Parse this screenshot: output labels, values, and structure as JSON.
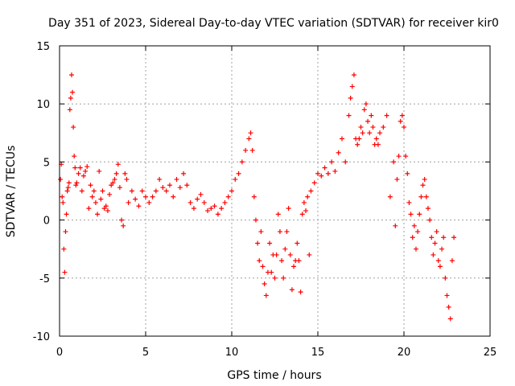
{
  "chart_data": {
    "type": "scatter",
    "marker": "+",
    "title": "Day 351 of 2023, Sidereal Day-to-day VTEC variation (SDTVAR) for receiver kir0",
    "xlabel": "GPS time / hours",
    "ylabel": "SDTVAR / TECUs",
    "xlim": [
      0,
      25
    ],
    "ylim": [
      -10,
      15
    ],
    "xticks": [
      0,
      5,
      10,
      15,
      20,
      25
    ],
    "yticks": [
      -10,
      -5,
      0,
      5,
      10,
      15
    ],
    "xtick_labels": [
      "0",
      "5",
      "10",
      "15",
      "20",
      "25"
    ],
    "ytick_labels": [
      "-10",
      "-5",
      "0",
      "5",
      "10",
      "15"
    ],
    "grid": true,
    "color": "#ff0000",
    "series": [
      {
        "name": "SDTVAR",
        "x": [
          0.05,
          0.1,
          0.15,
          0.2,
          0.25,
          0.3,
          0.35,
          0.4,
          0.45,
          0.5,
          0.55,
          0.6,
          0.65,
          0.7,
          0.75,
          0.8,
          0.85,
          0.9,
          0.95,
          1.0,
          1.1,
          1.2,
          1.3,
          1.4,
          1.5,
          1.6,
          1.7,
          1.8,
          1.9,
          2.0,
          2.1,
          2.2,
          2.3,
          2.4,
          2.5,
          2.6,
          2.7,
          2.8,
          2.9,
          3.0,
          3.1,
          3.2,
          3.3,
          3.4,
          3.5,
          3.6,
          3.7,
          3.8,
          3.9,
          4.0,
          4.2,
          4.4,
          4.6,
          4.8,
          5.0,
          5.2,
          5.4,
          5.6,
          5.8,
          6.0,
          6.2,
          6.4,
          6.6,
          6.8,
          7.0,
          7.2,
          7.4,
          7.6,
          7.8,
          8.0,
          8.2,
          8.4,
          8.6,
          8.8,
          9.0,
          9.2,
          9.4,
          9.6,
          9.8,
          10.0,
          10.2,
          10.4,
          10.6,
          10.8,
          11.0,
          11.1,
          11.2,
          11.3,
          11.4,
          11.5,
          11.6,
          11.7,
          11.8,
          11.9,
          12.0,
          12.1,
          12.2,
          12.3,
          12.4,
          12.5,
          12.6,
          12.7,
          12.8,
          12.9,
          13.0,
          13.1,
          13.2,
          13.3,
          13.4,
          13.5,
          13.6,
          13.7,
          13.8,
          13.9,
          14.0,
          14.1,
          14.2,
          14.3,
          14.4,
          14.5,
          14.6,
          14.8,
          15.0,
          15.2,
          15.4,
          15.6,
          15.8,
          16.0,
          16.2,
          16.4,
          16.6,
          16.8,
          16.9,
          17.0,
          17.1,
          17.2,
          17.3,
          17.4,
          17.5,
          17.6,
          17.7,
          17.8,
          17.9,
          18.0,
          18.1,
          18.2,
          18.3,
          18.4,
          18.5,
          18.6,
          18.8,
          19.0,
          19.2,
          19.4,
          19.5,
          19.6,
          19.7,
          19.8,
          19.9,
          20.0,
          20.1,
          20.2,
          20.3,
          20.4,
          20.5,
          20.6,
          20.7,
          20.8,
          20.9,
          21.0,
          21.1,
          21.2,
          21.3,
          21.4,
          21.5,
          21.6,
          21.7,
          21.8,
          21.9,
          22.0,
          22.1,
          22.2,
          22.3,
          22.4,
          22.5,
          22.6,
          22.7,
          22.8,
          22.9
        ],
        "y": [
          3.5,
          4.8,
          2.0,
          1.5,
          -2.5,
          -4.5,
          -1.0,
          0.5,
          2.5,
          2.8,
          3.2,
          9.5,
          10.5,
          12.5,
          11.0,
          8.0,
          5.5,
          4.5,
          3.0,
          3.2,
          4.0,
          4.5,
          2.5,
          3.8,
          4.2,
          4.6,
          1.0,
          3.0,
          2.0,
          2.5,
          1.5,
          0.5,
          4.2,
          1.8,
          2.5,
          1.0,
          1.2,
          0.8,
          2.2,
          3.0,
          3.2,
          3.5,
          4.0,
          4.8,
          2.8,
          0.0,
          -0.5,
          4.0,
          3.5,
          1.5,
          2.5,
          1.8,
          1.2,
          2.5,
          2.0,
          1.5,
          2.0,
          2.5,
          3.5,
          2.8,
          2.5,
          3.0,
          2.0,
          3.5,
          2.8,
          4.0,
          3.0,
          1.5,
          1.0,
          1.8,
          2.2,
          1.5,
          0.8,
          1.0,
          1.2,
          0.5,
          1.0,
          1.5,
          2.0,
          2.5,
          3.5,
          4.0,
          5.0,
          6.0,
          7.0,
          7.5,
          6.0,
          2.0,
          0.0,
          -2.0,
          -3.5,
          -1.0,
          -4.0,
          -5.5,
          -6.5,
          -4.5,
          -2.0,
          -4.5,
          -3.0,
          -5.0,
          -3.0,
          0.5,
          -1.0,
          -3.5,
          -5.0,
          -2.5,
          -1.0,
          1.0,
          -3.0,
          -6.0,
          -4.0,
          -3.5,
          -2.0,
          -3.5,
          -6.2,
          0.5,
          1.5,
          0.8,
          2.0,
          -3.0,
          2.5,
          3.2,
          4.0,
          3.8,
          4.5,
          4.0,
          5.0,
          4.2,
          5.8,
          7.0,
          5.0,
          9.0,
          10.5,
          11.5,
          12.5,
          7.0,
          6.5,
          7.0,
          8.0,
          7.5,
          9.5,
          10.0,
          8.5,
          7.5,
          9.0,
          8.0,
          6.5,
          7.0,
          6.5,
          7.5,
          8.0,
          9.0,
          2.0,
          5.0,
          -0.5,
          3.5,
          5.5,
          8.5,
          9.0,
          8.0,
          5.5,
          4.0,
          1.5,
          0.5,
          -1.5,
          -0.5,
          -2.5,
          -1.0,
          0.5,
          2.0,
          3.0,
          3.5,
          2.0,
          1.0,
          0.0,
          -1.5,
          -3.0,
          -2.0,
          -1.0,
          -3.5,
          -4.0,
          -2.5,
          -1.5,
          -5.0,
          -6.5,
          -7.5,
          -8.5,
          -3.5,
          -1.5
        ]
      }
    ]
  }
}
